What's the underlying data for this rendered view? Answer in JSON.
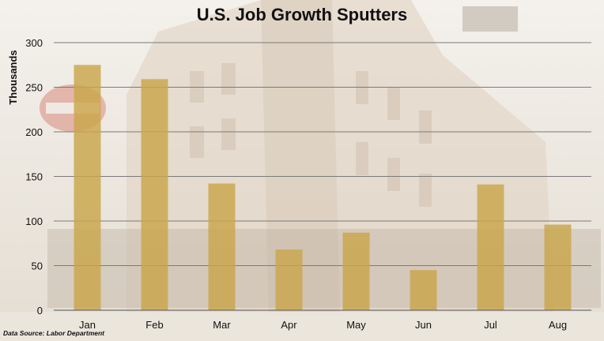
{
  "chart_data": {
    "type": "bar",
    "title": "U.S. Job Growth Sputters",
    "ylabel": "Thousands",
    "xlabel": "",
    "categories": [
      "Jan",
      "Feb",
      "Mar",
      "Apr",
      "May",
      "Jun",
      "Jul",
      "Aug"
    ],
    "values": [
      275,
      259,
      142,
      68,
      87,
      45,
      141,
      96
    ],
    "ylim": [
      0,
      300
    ],
    "yticks": [
      0,
      50,
      100,
      150,
      200,
      250,
      300
    ],
    "grid": true,
    "bar_color": "#c9a64a",
    "source": "Data Source: Labor Department"
  }
}
